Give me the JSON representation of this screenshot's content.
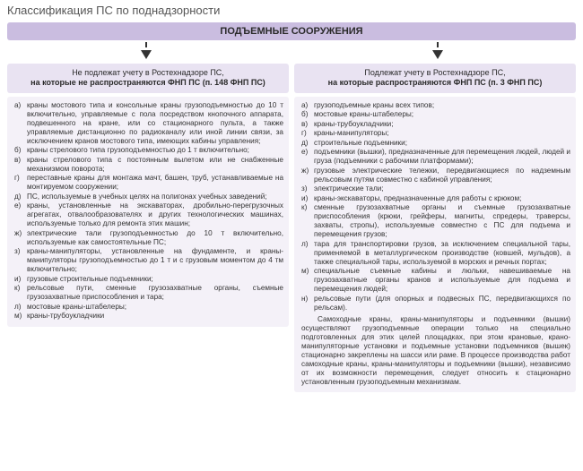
{
  "title": "Классификация ПС по поднадзорности",
  "header": "ПОДЪЕМНЫЕ СООРУЖЕНИЯ",
  "left": {
    "sub_line1": "Не подлежат учету в Ростехнадзоре ПС,",
    "sub_line2": "на которые не распространяются ФНП ПС (п. 148 ФНП ПС)",
    "items": [
      {
        "m": "а)",
        "t": "краны мостового типа и консольные краны грузоподъемностью до 10 т включительно, управляемые с пола посредством кнопочного аппарата, подвешенного на кране, или со стационарного пульта, а также управляемые дистанционно по радиоканалу или иной линии связи, за исключением кранов мостового типа, имеющих кабины управления;"
      },
      {
        "m": "б)",
        "t": "краны стрелового типа грузоподъемностью до 1 т включительно;"
      },
      {
        "m": "в)",
        "t": "краны стрелового типа с постоянным вылетом или не снабженные механизмом поворота;"
      },
      {
        "m": "г)",
        "t": "переставные краны для монтажа мачт, башен, труб, устанавливаемые на монтируемом сооружении;"
      },
      {
        "m": "д)",
        "t": "ПС, используемые в учебных целях на полигонах учебных заведений;"
      },
      {
        "m": "е)",
        "t": "краны, установленные на экскаваторах, дробильно-перегрузочных агрегатах, отвалообразователях и других технологических машинах, используемые только для ремонта этих машин;"
      },
      {
        "m": "ж)",
        "t": "электрические тали грузоподъемностью до 10 т включительно, используемые как самостоятельные ПС;"
      },
      {
        "m": "з)",
        "t": "краны-манипуляторы, установленные на фундаменте, и краны-манипуляторы грузоподъемностью до 1 т и с грузовым моментом до 4 тм включительно;"
      },
      {
        "m": "и)",
        "t": "грузовые строительные подъемники;"
      },
      {
        "m": "к)",
        "t": "рельсовые пути, сменные грузозахватные органы, съемные грузозахватные приспособления и тара;"
      },
      {
        "m": "л)",
        "t": "мостовые краны-штабелеры;"
      },
      {
        "m": "м)",
        "t": "краны-трубоукладчики"
      }
    ]
  },
  "right": {
    "sub_line1": "Подлежат учету в Ростехнадзоре ПС,",
    "sub_line2": "на которые распространяются ФНП ПС (п. 3 ФНП ПС)",
    "items": [
      {
        "m": "а)",
        "t": "грузоподъемные краны всех типов;"
      },
      {
        "m": "б)",
        "t": "мостовые краны-штабелеры;"
      },
      {
        "m": "в)",
        "t": "краны-трубоукладчики;"
      },
      {
        "m": "г)",
        "t": "краны-манипуляторы;"
      },
      {
        "m": "д)",
        "t": "строительные подъемники;"
      },
      {
        "m": "е)",
        "t": "подъемники (вышки), предназначенные для перемещения людей, людей и груза (подъемники с рабочими платформами);"
      },
      {
        "m": "ж)",
        "t": "грузовые электрические тележки, передвигающиеся по надземным рельсовым путям совместно с кабиной управления;"
      },
      {
        "m": "з)",
        "t": "электрические тали;"
      },
      {
        "m": "и)",
        "t": "краны-экскаваторы, предназначенные для работы с крюком;"
      },
      {
        "m": "к)",
        "t": "сменные грузозахватные органы и съемные грузозахватные приспособления (крюки, грейферы, магниты, спредеры, траверсы, захваты, стропы), используемые совместно с ПС для подъема и перемещения грузов;"
      },
      {
        "m": "л)",
        "t": "тара для транспортировки грузов, за исключением специальной тары, применяемой в металлургическом производстве (ковшей, мульдов), а также специальной тары, используемой в морских и речных портах;"
      },
      {
        "m": "м)",
        "t": "специальные съемные кабины и люльки, навешиваемые на грузозахватные органы кранов и используемые для подъема и перемещения людей;"
      },
      {
        "m": "н)",
        "t": "рельсовые пути (для опорных и подвесных ПС, передвигающихся по рельсам)."
      }
    ],
    "note": "Самоходные краны, краны-манипуляторы и подъемники (вышки) осуществляют грузоподъемные операции только на специально подготовленных для этих целей площадках, при этом крановые, крано-манипуляторные установки и подъемные установки подъемников (вышек) стационарно закреплены на шасси или раме. В процессе производства работ самоходные краны, краны-манипуляторы и подъемники (вышки), независимо от их возможности перемещения, следует относить к стационарно установленным грузоподъемным механизмам."
  },
  "colors": {
    "header_bg": "#cabde0",
    "subheader_bg": "#e9e3f2",
    "list_bg": "#f4f1f8",
    "text": "#333333",
    "title": "#555555"
  }
}
